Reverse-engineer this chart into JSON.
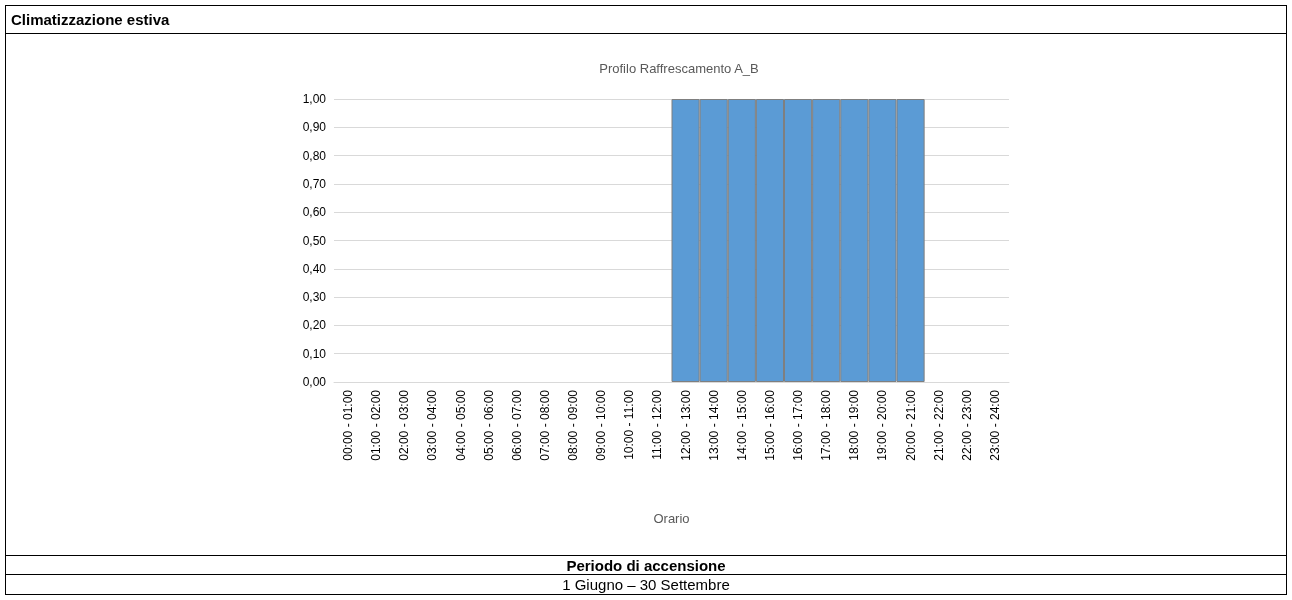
{
  "chart_data": {
    "type": "bar",
    "title": "Profilo Raffrescamento A_B",
    "xlabel": "Orario",
    "annotations": [
      "Climatizzazione estiva",
      "Periodo di accensione",
      "1 Giugno – 30 Settembre"
    ],
    "categories": [
      "00:00 - 01:00",
      "01:00 - 02:00",
      "02:00 - 03:00",
      "03:00 - 04:00",
      "04:00 - 05:00",
      "05:00 - 06:00",
      "06:00 - 07:00",
      "07:00 - 08:00",
      "08:00 - 09:00",
      "09:00 - 10:00",
      "10:00 - 11:00",
      "11:00 - 12:00",
      "12:00 - 13:00",
      "13:00 - 14:00",
      "14:00 - 15:00",
      "15:00 - 16:00",
      "16:00 - 17:00",
      "17:00 - 18:00",
      "18:00 - 19:00",
      "19:00 - 20:00",
      "20:00 - 21:00",
      "21:00 - 22:00",
      "22:00 - 23:00",
      "23:00 - 24:00"
    ],
    "values": [
      0,
      0,
      0,
      0,
      0,
      0,
      0,
      0,
      0,
      0,
      0,
      0,
      1,
      1,
      1,
      1,
      1,
      1,
      1,
      1,
      1,
      0,
      0,
      0
    ],
    "color": "#5b9bd5",
    "ylim": [
      0,
      1
    ],
    "yticks": [
      {
        "value": 0,
        "label": "0,00"
      },
      {
        "value": 0.1,
        "label": "0,10"
      },
      {
        "value": 0.2,
        "label": "0,20"
      },
      {
        "value": 0.3,
        "label": "0,30"
      },
      {
        "value": 0.4,
        "label": "0,40"
      },
      {
        "value": 0.5,
        "label": "0,50"
      },
      {
        "value": 0.6,
        "label": "0,60"
      },
      {
        "value": 0.7,
        "label": "0,70"
      },
      {
        "value": 0.8,
        "label": "0,80"
      },
      {
        "value": 0.9,
        "label": "0,90"
      },
      {
        "value": 1,
        "label": "1,00"
      }
    ],
    "grid": "y"
  }
}
